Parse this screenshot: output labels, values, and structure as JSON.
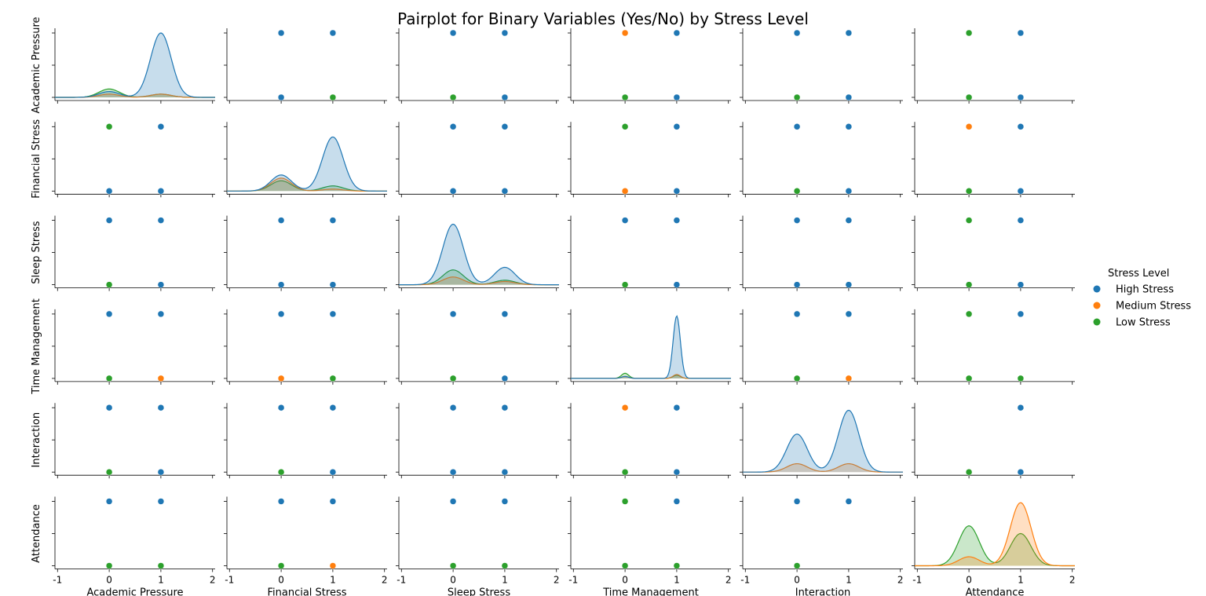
{
  "chart_data": {
    "type": "scatter",
    "subtype": "pairplot",
    "title": "Pairplot for Binary Variables (Yes/No) by Stress Level",
    "variables": [
      "Academic Pressure",
      "Financial Stress",
      "Sleep Stress",
      "Time Management",
      "Interaction",
      "Attendance"
    ],
    "x_ticks": [
      -1,
      0,
      1,
      2
    ],
    "x_tick_labels": [
      "-1",
      "0",
      "1",
      "2"
    ],
    "xlim": [
      -1.05,
      2.05
    ],
    "grid": false,
    "legend": {
      "title": "Stress Level",
      "placement": "right",
      "entries": [
        {
          "name": "High Stress",
          "color": "#1f77b4"
        },
        {
          "name": "Medium Stress",
          "color": "#ff7f0e"
        },
        {
          "name": "Low Stress",
          "color": "#2ca02c"
        }
      ]
    },
    "diagonal_kde": [
      {
        "var": "Academic Pressure",
        "series": {
          "High Stress": [
            0.09,
            1.0
          ],
          "Medium Stress": [
            0.05,
            0.05
          ],
          "Low Stress": [
            0.13,
            0.05
          ]
        }
      },
      {
        "var": "Financial Stress",
        "series": {
          "High Stress": [
            0.25,
            0.84
          ],
          "Medium Stress": [
            0.2,
            0.03
          ],
          "Low Stress": [
            0.16,
            0.08
          ]
        }
      },
      {
        "var": "Sleep Stress",
        "series": {
          "High Stress": [
            0.94,
            0.27
          ],
          "Medium Stress": [
            0.12,
            0.05
          ],
          "Low Stress": [
            0.23,
            0.07
          ]
        }
      },
      {
        "var": "Time Management",
        "series": {
          "High Stress": [
            0.03,
            0.97
          ],
          "Medium Stress": [
            0.03,
            0.06
          ],
          "Low Stress": [
            0.08,
            0.05
          ]
        }
      },
      {
        "var": "Interaction",
        "series": {
          "High Stress": [
            0.59,
            0.96
          ],
          "Medium Stress": [
            0.13,
            0.13
          ],
          "Low Stress": [
            0.0,
            0.0
          ]
        }
      },
      {
        "var": "Attendance",
        "series": {
          "High Stress": [
            0.0,
            0.0
          ],
          "Medium Stress": [
            0.14,
            0.98
          ],
          "Low Stress": [
            0.62,
            0.5
          ]
        }
      }
    ],
    "scatter_points": [
      {
        "row": 0,
        "col": 1,
        "points": [
          [
            0,
            1,
            "High Stress"
          ],
          [
            1,
            1,
            "High Stress"
          ],
          [
            0,
            0,
            "High Stress"
          ],
          [
            1,
            0,
            "Low Stress"
          ]
        ]
      },
      {
        "row": 0,
        "col": 2,
        "points": [
          [
            0,
            1,
            "High Stress"
          ],
          [
            1,
            1,
            "High Stress"
          ],
          [
            0,
            0,
            "Low Stress"
          ],
          [
            1,
            0,
            "High Stress"
          ]
        ]
      },
      {
        "row": 0,
        "col": 3,
        "points": [
          [
            0,
            1,
            "Medium Stress"
          ],
          [
            1,
            1,
            "High Stress"
          ],
          [
            0,
            0,
            "Low Stress"
          ],
          [
            1,
            0,
            "High Stress"
          ]
        ]
      },
      {
        "row": 0,
        "col": 4,
        "points": [
          [
            0,
            1,
            "High Stress"
          ],
          [
            1,
            1,
            "High Stress"
          ],
          [
            0,
            0,
            "Low Stress"
          ],
          [
            1,
            0,
            "High Stress"
          ]
        ]
      },
      {
        "row": 0,
        "col": 5,
        "points": [
          [
            0,
            1,
            "Low Stress"
          ],
          [
            1,
            1,
            "High Stress"
          ],
          [
            0,
            0,
            "Low Stress"
          ],
          [
            1,
            0,
            "High Stress"
          ]
        ]
      },
      {
        "row": 1,
        "col": 0,
        "points": [
          [
            0,
            1,
            "Low Stress"
          ],
          [
            1,
            1,
            "High Stress"
          ],
          [
            0,
            0,
            "High Stress"
          ],
          [
            1,
            0,
            "High Stress"
          ]
        ]
      },
      {
        "row": 1,
        "col": 2,
        "points": [
          [
            0,
            1,
            "High Stress"
          ],
          [
            1,
            1,
            "High Stress"
          ],
          [
            0,
            0,
            "High Stress"
          ],
          [
            1,
            0,
            "High Stress"
          ]
        ]
      },
      {
        "row": 1,
        "col": 3,
        "points": [
          [
            0,
            1,
            "Low Stress"
          ],
          [
            1,
            1,
            "High Stress"
          ],
          [
            0,
            0,
            "Medium Stress"
          ],
          [
            1,
            0,
            "High Stress"
          ]
        ]
      },
      {
        "row": 1,
        "col": 4,
        "points": [
          [
            0,
            1,
            "High Stress"
          ],
          [
            1,
            1,
            "High Stress"
          ],
          [
            0,
            0,
            "Low Stress"
          ],
          [
            1,
            0,
            "High Stress"
          ]
        ]
      },
      {
        "row": 1,
        "col": 5,
        "points": [
          [
            0,
            1,
            "Medium Stress"
          ],
          [
            1,
            1,
            "High Stress"
          ],
          [
            0,
            0,
            "Low Stress"
          ],
          [
            1,
            0,
            "High Stress"
          ]
        ]
      },
      {
        "row": 2,
        "col": 0,
        "points": [
          [
            0,
            1,
            "High Stress"
          ],
          [
            1,
            1,
            "High Stress"
          ],
          [
            0,
            0,
            "Low Stress"
          ],
          [
            1,
            0,
            "High Stress"
          ]
        ]
      },
      {
        "row": 2,
        "col": 1,
        "points": [
          [
            0,
            1,
            "High Stress"
          ],
          [
            1,
            1,
            "High Stress"
          ],
          [
            0,
            0,
            "High Stress"
          ],
          [
            1,
            0,
            "High Stress"
          ]
        ]
      },
      {
        "row": 2,
        "col": 3,
        "points": [
          [
            0,
            1,
            "High Stress"
          ],
          [
            1,
            1,
            "High Stress"
          ],
          [
            0,
            0,
            "Low Stress"
          ],
          [
            1,
            0,
            "High Stress"
          ]
        ]
      },
      {
        "row": 2,
        "col": 4,
        "points": [
          [
            0,
            1,
            "High Stress"
          ],
          [
            1,
            1,
            "High Stress"
          ],
          [
            0,
            0,
            "High Stress"
          ],
          [
            1,
            0,
            "High Stress"
          ]
        ]
      },
      {
        "row": 2,
        "col": 5,
        "points": [
          [
            0,
            1,
            "Low Stress"
          ],
          [
            1,
            1,
            "High Stress"
          ],
          [
            0,
            0,
            "Low Stress"
          ],
          [
            1,
            0,
            "High Stress"
          ]
        ]
      },
      {
        "row": 3,
        "col": 0,
        "points": [
          [
            0,
            1,
            "High Stress"
          ],
          [
            1,
            1,
            "High Stress"
          ],
          [
            0,
            0,
            "Low Stress"
          ],
          [
            1,
            0,
            "Medium Stress"
          ]
        ]
      },
      {
        "row": 3,
        "col": 1,
        "points": [
          [
            0,
            1,
            "High Stress"
          ],
          [
            1,
            1,
            "High Stress"
          ],
          [
            0,
            0,
            "Medium Stress"
          ],
          [
            1,
            0,
            "Low Stress"
          ]
        ]
      },
      {
        "row": 3,
        "col": 2,
        "points": [
          [
            0,
            1,
            "High Stress"
          ],
          [
            1,
            1,
            "High Stress"
          ],
          [
            0,
            0,
            "Low Stress"
          ],
          [
            1,
            0,
            "High Stress"
          ]
        ]
      },
      {
        "row": 3,
        "col": 4,
        "points": [
          [
            0,
            1,
            "High Stress"
          ],
          [
            1,
            1,
            "High Stress"
          ],
          [
            0,
            0,
            "Low Stress"
          ],
          [
            1,
            0,
            "Medium Stress"
          ]
        ]
      },
      {
        "row": 3,
        "col": 5,
        "points": [
          [
            0,
            1,
            "Low Stress"
          ],
          [
            1,
            1,
            "High Stress"
          ],
          [
            0,
            0,
            "Low Stress"
          ],
          [
            1,
            0,
            "Low Stress"
          ]
        ]
      },
      {
        "row": 4,
        "col": 0,
        "points": [
          [
            0,
            1,
            "High Stress"
          ],
          [
            1,
            1,
            "High Stress"
          ],
          [
            0,
            0,
            "Low Stress"
          ],
          [
            1,
            0,
            "High Stress"
          ]
        ]
      },
      {
        "row": 4,
        "col": 1,
        "points": [
          [
            0,
            1,
            "High Stress"
          ],
          [
            1,
            1,
            "High Stress"
          ],
          [
            0,
            0,
            "Low Stress"
          ],
          [
            1,
            0,
            "High Stress"
          ]
        ]
      },
      {
        "row": 4,
        "col": 2,
        "points": [
          [
            0,
            1,
            "High Stress"
          ],
          [
            1,
            1,
            "High Stress"
          ],
          [
            0,
            0,
            "High Stress"
          ],
          [
            1,
            0,
            "High Stress"
          ]
        ]
      },
      {
        "row": 4,
        "col": 3,
        "points": [
          [
            0,
            1,
            "Medium Stress"
          ],
          [
            1,
            1,
            "High Stress"
          ],
          [
            0,
            0,
            "Low Stress"
          ],
          [
            1,
            0,
            "High Stress"
          ]
        ]
      },
      {
        "row": 4,
        "col": 5,
        "points": [
          [
            1,
            1,
            "High Stress"
          ],
          [
            0,
            0,
            "Low Stress"
          ],
          [
            1,
            0,
            "High Stress"
          ]
        ]
      },
      {
        "row": 5,
        "col": 0,
        "points": [
          [
            0,
            1,
            "High Stress"
          ],
          [
            1,
            1,
            "High Stress"
          ],
          [
            0,
            0,
            "Low Stress"
          ],
          [
            1,
            0,
            "Low Stress"
          ]
        ]
      },
      {
        "row": 5,
        "col": 1,
        "points": [
          [
            0,
            1,
            "High Stress"
          ],
          [
            1,
            1,
            "High Stress"
          ],
          [
            0,
            0,
            "Low Stress"
          ],
          [
            1,
            0,
            "Medium Stress"
          ]
        ]
      },
      {
        "row": 5,
        "col": 2,
        "points": [
          [
            0,
            1,
            "High Stress"
          ],
          [
            1,
            1,
            "High Stress"
          ],
          [
            0,
            0,
            "Low Stress"
          ],
          [
            1,
            0,
            "Low Stress"
          ]
        ]
      },
      {
        "row": 5,
        "col": 3,
        "points": [
          [
            0,
            1,
            "Low Stress"
          ],
          [
            1,
            1,
            "High Stress"
          ],
          [
            0,
            0,
            "Low Stress"
          ],
          [
            1,
            0,
            "Low Stress"
          ]
        ]
      },
      {
        "row": 5,
        "col": 4,
        "points": [
          [
            0,
            1,
            "High Stress"
          ],
          [
            1,
            1,
            "High Stress"
          ],
          [
            0,
            0,
            "Low Stress"
          ]
        ]
      }
    ]
  }
}
